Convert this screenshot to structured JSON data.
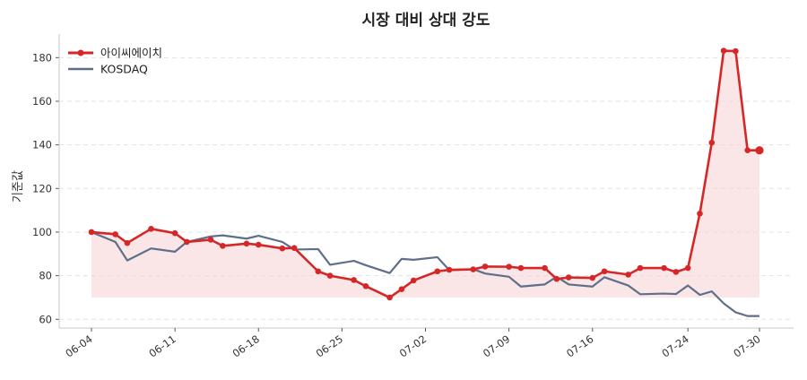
{
  "colors": {
    "stock": "#d62728",
    "stock_fill": "#f7d6d6",
    "index": "#5f6f8a",
    "grid": "#e3e3e3",
    "axis": "#c8c8c8",
    "text": "#222222",
    "tick_text": "#333333"
  },
  "chart_data": {
    "type": "line",
    "title": "시장 대비 상대 강도",
    "xlabel": "",
    "ylabel": "기준값",
    "ylim": [
      56,
      190
    ],
    "yticks": [
      60,
      80,
      100,
      120,
      140,
      160,
      180
    ],
    "xticks": [
      "06-04",
      "06-11",
      "06-18",
      "06-25",
      "07-02",
      "07-09",
      "07-16",
      "07-24",
      "07-30"
    ],
    "grid": "horizontal dashed",
    "legend_position": "top-left",
    "fill_baseline": 70,
    "x": [
      "06-04",
      "06-05",
      "06-06",
      "06-07",
      "06-08",
      "06-09",
      "06-10",
      "06-11",
      "06-12",
      "06-13",
      "06-14",
      "06-15",
      "06-16",
      "06-17",
      "06-18",
      "06-19",
      "06-20",
      "06-21",
      "06-22",
      "06-23",
      "06-24",
      "06-25",
      "06-26",
      "06-27",
      "06-28",
      "06-29",
      "06-30",
      "07-01",
      "07-02",
      "07-03",
      "07-04",
      "07-05",
      "07-06",
      "07-07",
      "07-08",
      "07-09",
      "07-10",
      "07-11",
      "07-12",
      "07-13",
      "07-14",
      "07-15",
      "07-16",
      "07-17",
      "07-18",
      "07-19",
      "07-20",
      "07-21",
      "07-22",
      "07-23",
      "07-24",
      "07-25",
      "07-26",
      "07-27",
      "07-28",
      "07-29",
      "07-30"
    ],
    "series": [
      {
        "name": "아이씨에이치",
        "x": [
          "06-04",
          "06-06",
          "06-07",
          "06-09",
          "06-11",
          "06-12",
          "06-14",
          "06-15",
          "06-17",
          "06-18",
          "06-20",
          "06-21",
          "06-23",
          "06-24",
          "06-26",
          "06-27",
          "06-29",
          "06-30",
          "07-01",
          "07-03",
          "07-04",
          "07-06",
          "07-07",
          "07-09",
          "07-10",
          "07-12",
          "07-13",
          "07-14",
          "07-16",
          "07-17",
          "07-19",
          "07-20",
          "07-22",
          "07-23",
          "07-24",
          "07-25",
          "07-26",
          "07-27",
          "07-28",
          "07-29",
          "07-30"
        ],
        "values": [
          100,
          99,
          95,
          101.5,
          99.5,
          95.5,
          96.5,
          93.7,
          94.7,
          94.2,
          92.5,
          92.7,
          82,
          80,
          78,
          75.2,
          70,
          73.8,
          77.8,
          82,
          82.7,
          82.9,
          84.2,
          84.1,
          83.5,
          83.5,
          78.5,
          79.2,
          79,
          82,
          80.5,
          83.5,
          83.5,
          81.7,
          83.5,
          108.5,
          141,
          183.2,
          183,
          137.5,
          137.5
        ]
      },
      {
        "name": "KOSDAQ",
        "x": [
          "06-04",
          "06-06",
          "06-07",
          "06-09",
          "06-11",
          "06-12",
          "06-14",
          "06-15",
          "06-17",
          "06-18",
          "06-20",
          "06-21",
          "06-23",
          "06-24",
          "06-26",
          "06-27",
          "06-29",
          "06-30",
          "07-01",
          "07-03",
          "07-04",
          "07-06",
          "07-07",
          "07-09",
          "07-10",
          "07-12",
          "07-13",
          "07-14",
          "07-16",
          "07-17",
          "07-19",
          "07-20",
          "07-22",
          "07-23",
          "07-24",
          "07-25",
          "07-26",
          "07-27",
          "07-28",
          "07-29",
          "07-30"
        ],
        "values": [
          100,
          95.5,
          87,
          92.5,
          91,
          95.5,
          98,
          98.5,
          97,
          98.3,
          95.5,
          92,
          92.2,
          85,
          86.8,
          84.8,
          81.2,
          87.7,
          87.3,
          88.5,
          82.5,
          83,
          81,
          79.5,
          75,
          76,
          79.5,
          76,
          75,
          79.3,
          75.5,
          71.5,
          71.8,
          71.6,
          75.5,
          71.2,
          72.8,
          67.3,
          63.2,
          61.5,
          61.5
        ]
      }
    ]
  }
}
